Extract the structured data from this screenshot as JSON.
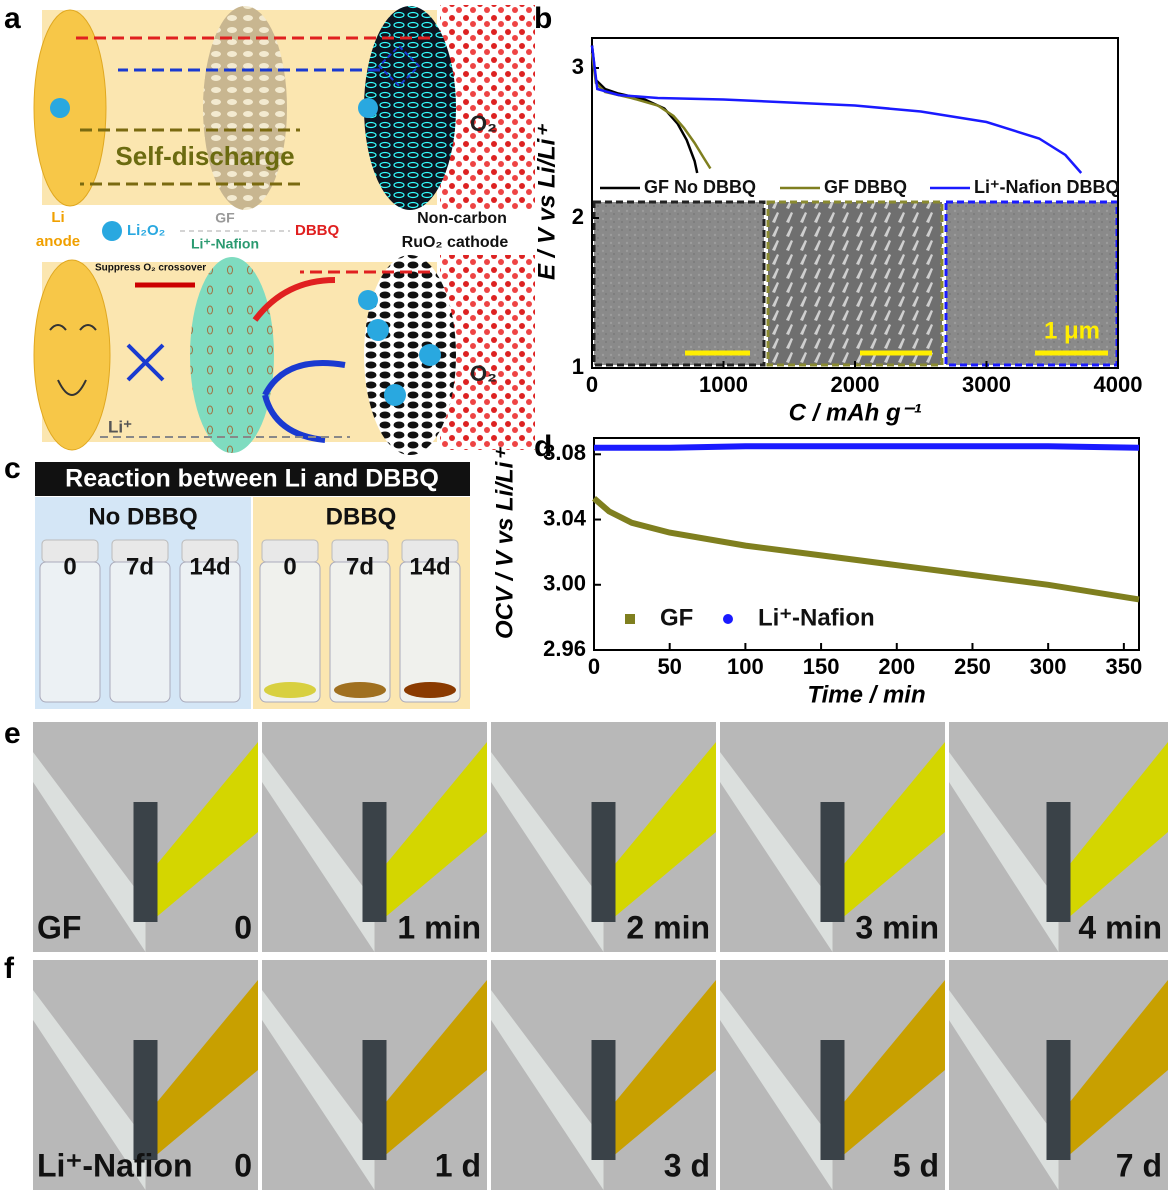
{
  "panel_labels": {
    "a": "a",
    "b": "b",
    "c": "c",
    "d": "d",
    "e": "e",
    "f": "f"
  },
  "schematic": {
    "self_discharge": "Self-discharge",
    "o2_top": "O₂",
    "li": "Li",
    "anode": "anode",
    "li2o2": "Li₂O₂",
    "gf": "GF",
    "dbbq": "DBBQ",
    "nafion": "Li⁺-Nafion",
    "cathode_1": "Non-carbon",
    "cathode_2": "RuO₂ cathode",
    "suppress": "Suppress O₂ crossover",
    "o2_bottom": "O₂",
    "li_ion": "Li⁺"
  },
  "chart_data": [
    {
      "type": "line",
      "xlabel": "C / mAh g⁻¹",
      "ylabel": "E / V vs Li/Li⁺",
      "xlim": [
        0,
        4000
      ],
      "ylim": [
        1,
        3.2
      ],
      "xticks": [
        0,
        1000,
        2000,
        3000,
        4000
      ],
      "yticks": [
        1,
        2,
        3
      ],
      "scale_bar": "1 μm",
      "series": [
        {
          "name": "GF No DBBQ",
          "color": "#000000",
          "x": [
            0,
            30,
            100,
            200,
            400,
            550,
            650,
            720,
            780,
            800
          ],
          "values": [
            3.15,
            2.92,
            2.86,
            2.83,
            2.79,
            2.73,
            2.63,
            2.52,
            2.38,
            2.3
          ]
        },
        {
          "name": "GF DBBQ",
          "color": "#7f7f1f",
          "x": [
            0,
            30,
            100,
            300,
            500,
            620,
            700,
            780,
            850,
            900
          ],
          "values": [
            3.1,
            2.9,
            2.84,
            2.8,
            2.75,
            2.68,
            2.6,
            2.5,
            2.4,
            2.33
          ]
        },
        {
          "name": "Li⁺-Nafion DBBQ",
          "color": "#1a1aff",
          "x": [
            0,
            40,
            200,
            500,
            1000,
            1500,
            2000,
            2500,
            3000,
            3400,
            3600,
            3720
          ],
          "values": [
            3.15,
            2.86,
            2.82,
            2.8,
            2.79,
            2.77,
            2.75,
            2.71,
            2.64,
            2.53,
            2.42,
            2.3
          ]
        }
      ]
    },
    {
      "type": "line",
      "xlabel": "Time / min",
      "ylabel": "OCV / V vs Li/Li⁺",
      "xlim": [
        0,
        360
      ],
      "ylim": [
        2.96,
        3.09
      ],
      "xticks": [
        0,
        50,
        100,
        150,
        200,
        250,
        300,
        350
      ],
      "yticks": [
        2.96,
        {
          "value": 3,
          "label": "3.00"
        },
        3.04,
        3.08
      ],
      "series": [
        {
          "name": "GF",
          "color": "#7f7f1f",
          "marker": "square",
          "x": [
            0,
            10,
            25,
            50,
            100,
            150,
            200,
            250,
            300,
            360
          ],
          "values": [
            3.053,
            3.045,
            3.038,
            3.032,
            3.024,
            3.018,
            3.012,
            3.006,
            3.0,
            2.991
          ]
        },
        {
          "name": "Li⁺-Nafion",
          "color": "#1a1aff",
          "marker": "circle",
          "x": [
            0,
            50,
            100,
            150,
            200,
            250,
            300,
            360
          ],
          "values": [
            3.084,
            3.084,
            3.085,
            3.085,
            3.085,
            3.085,
            3.085,
            3.084
          ]
        }
      ]
    }
  ],
  "vials": {
    "title": "Reaction between Li and DBBQ",
    "groups": [
      {
        "name": "No DBBQ",
        "labels": [
          "0",
          "7d",
          "14d"
        ]
      },
      {
        "name": "DBBQ",
        "labels": [
          "0",
          "7d",
          "14d"
        ]
      }
    ]
  },
  "photos": {
    "e": {
      "sample": "GF",
      "times": [
        "0",
        "1 min",
        "2 min",
        "3 min",
        "4 min"
      ]
    },
    "f": {
      "sample": "Li⁺-Nafion",
      "times": [
        "0",
        "1 d",
        "3 d",
        "5 d",
        "7 d"
      ]
    }
  }
}
